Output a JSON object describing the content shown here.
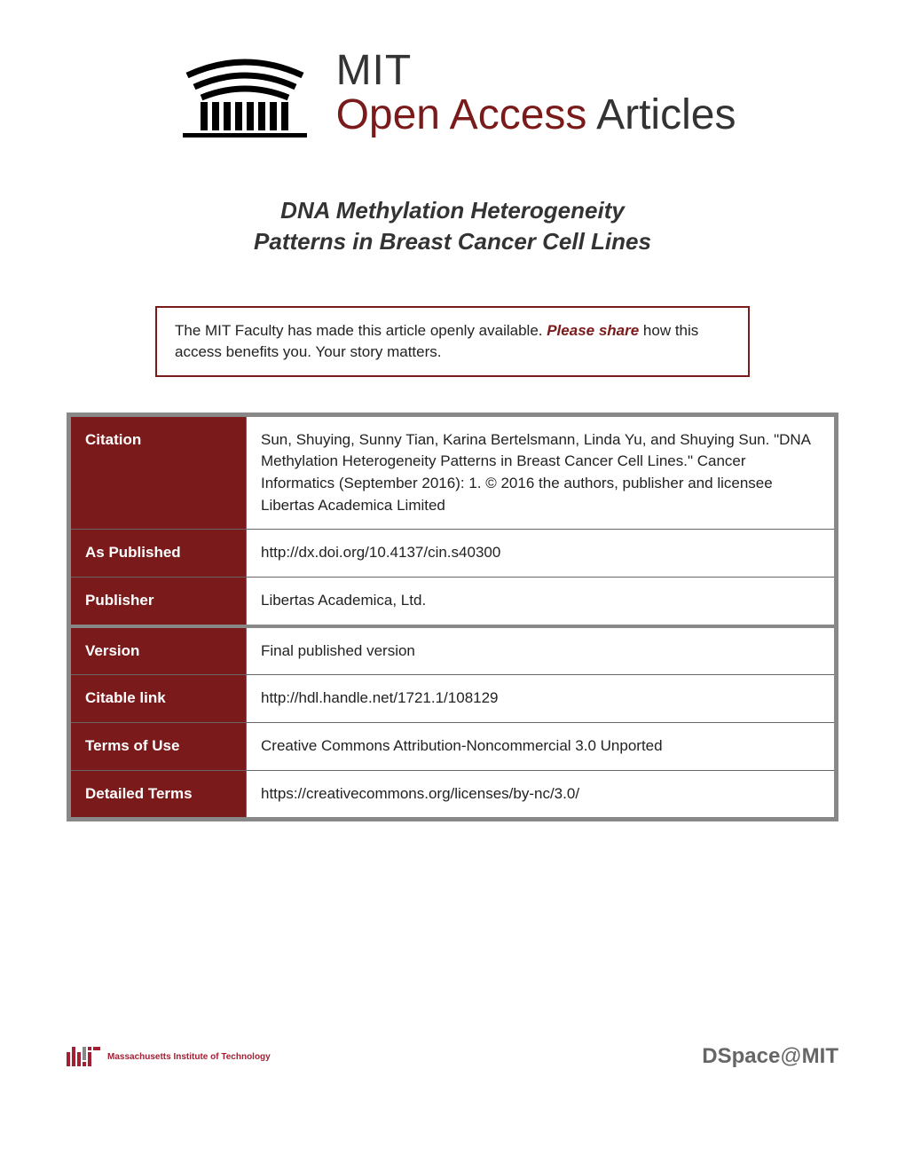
{
  "header": {
    "line1": "MIT",
    "line2_red": "Open Access",
    "line2_black": " Articles"
  },
  "title": {
    "line1": "DNA Methylation Heterogeneity",
    "line2": "Patterns in Breast Cancer Cell Lines"
  },
  "share_box": {
    "text_before": "The MIT Faculty has made this article openly available. ",
    "please_share": "Please share",
    "text_after": " how this access benefits you. Your story matters."
  },
  "metadata": {
    "rows": [
      {
        "label": "Citation",
        "value": "Sun, Shuying, Sunny Tian, Karina Bertelsmann, Linda Yu, and Shuying Sun. \"DNA Methylation Heterogeneity Patterns in Breast Cancer Cell Lines.\" Cancer Informatics (September 2016): 1. © 2016 the authors, publisher and licensee Libertas Academica Limited",
        "thick_before": false
      },
      {
        "label": "As Published",
        "value": "http://dx.doi.org/10.4137/cin.s40300",
        "thick_before": false
      },
      {
        "label": "Publisher",
        "value": "Libertas Academica, Ltd.",
        "thick_before": false
      },
      {
        "label": "Version",
        "value": "Final published version",
        "thick_before": true
      },
      {
        "label": "Citable link",
        "value": "http://hdl.handle.net/1721.1/108129",
        "thick_before": false
      },
      {
        "label": "Terms of Use",
        "value": "Creative Commons Attribution-Noncommercial 3.0 Unported",
        "thick_before": false
      },
      {
        "label": "Detailed Terms",
        "value": "https://creativecommons.org/licenses/by-nc/3.0/",
        "thick_before": false
      }
    ]
  },
  "footer": {
    "mit_text": "Massachusetts Institute of Technology",
    "dspace_prefix": "DSpace",
    "dspace_at": "@",
    "dspace_suffix": "MIT"
  },
  "colors": {
    "brand_red": "#7a1a1a",
    "mit_red": "#a31f34",
    "text_dark": "#333333",
    "border_gray": "#888888"
  }
}
